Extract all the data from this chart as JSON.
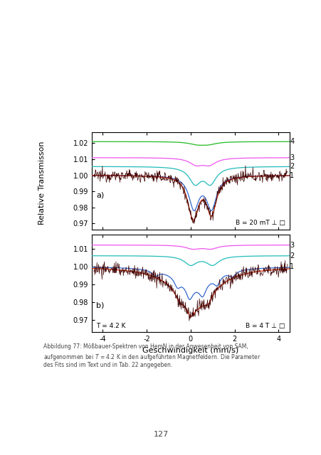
{
  "xlabel": "Geschwindigkeit (mm/s)",
  "ylabel": "Relative Transmisson",
  "xlim": [
    -4.5,
    4.5
  ],
  "xticks": [
    -4,
    -2,
    0,
    2,
    4
  ],
  "subplot_a": {
    "label": "a)",
    "ylim": [
      0.966,
      1.027
    ],
    "yticks": [
      0.97,
      0.98,
      0.99,
      1.0,
      1.01,
      1.02
    ],
    "annotation": "B = 20 mT ⊥ □",
    "curve_labels": [
      "4",
      "3",
      "2",
      "1"
    ],
    "offsets": [
      0.021,
      0.011,
      0.0055,
      0.0
    ],
    "colors_smooth": [
      "#22bb22",
      "#ee55ee",
      "#22bbbb",
      "#3366cc"
    ],
    "color_data": "#3d0000",
    "color_fit": "#cc2200"
  },
  "subplot_b": {
    "label": "b)",
    "ylim": [
      0.963,
      1.018
    ],
    "yticks": [
      0.97,
      0.98,
      0.99,
      1.0,
      1.01
    ],
    "annotation_left": "T = 4.2 K",
    "annotation_right": "B = 4 T ⊥ □",
    "curve_labels": [
      "3",
      "2",
      "1"
    ],
    "offsets": [
      0.012,
      0.006,
      0.0
    ],
    "colors_smooth": [
      "#ee55ee",
      "#22bbbb",
      "#3366cc"
    ],
    "color_data": "#3d0000",
    "color_fit": "#cc2200"
  },
  "caption_line1": "Abbildung 77: Mößbauer-Spektren von HemN in der Anwesenheit von SAM,",
  "caption_line2": "aufgenommen bei $T$ = 4.2 K in den aufgeführten Magnetfeldern. Die Parameter",
  "caption_line3": "des Fits sind im Text und in Tab. 22 angegeben.",
  "page_number": "127",
  "background_color": "#ffffff"
}
